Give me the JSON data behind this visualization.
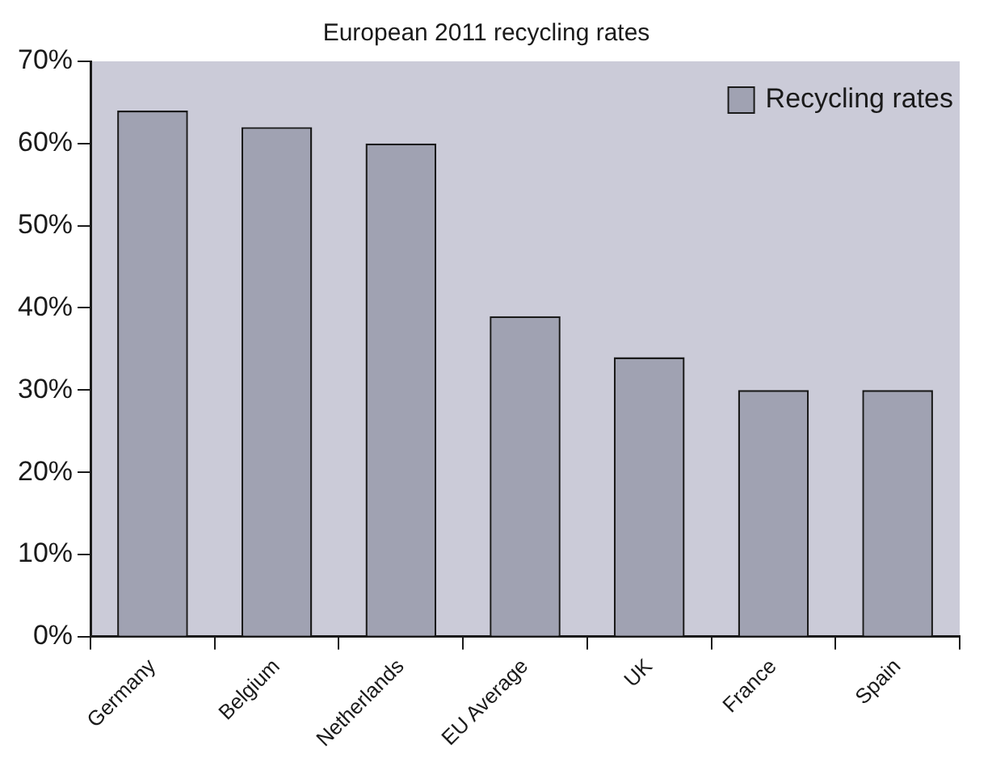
{
  "chart_data": {
    "type": "bar",
    "title": "European 2011 recycling rates",
    "categories": [
      "Germany",
      "Belgium",
      "Netherlands",
      "EU Average",
      "UK",
      "France",
      "Spain"
    ],
    "series": [
      {
        "name": "Recycling rates",
        "color": "#a0a2b2",
        "values": [
          64,
          62,
          60,
          39,
          34,
          30,
          30
        ]
      }
    ],
    "ylim": [
      0,
      70
    ],
    "yticks": [
      {
        "value": 0,
        "label": "0%"
      },
      {
        "value": 10,
        "label": "10%"
      },
      {
        "value": 20,
        "label": "20%"
      },
      {
        "value": 30,
        "label": "30%"
      },
      {
        "value": 40,
        "label": "40%"
      },
      {
        "value": 50,
        "label": "50%"
      },
      {
        "value": 60,
        "label": "60%"
      },
      {
        "value": 70,
        "label": "70%"
      }
    ],
    "grid": false,
    "legend": "top right"
  }
}
